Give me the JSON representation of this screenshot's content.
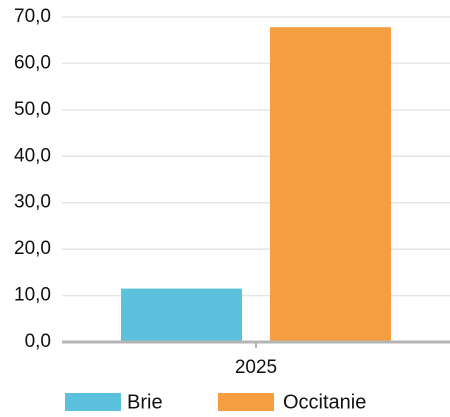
{
  "chart_data": {
    "type": "bar",
    "categories": [
      "2025"
    ],
    "series": [
      {
        "name": "Brie",
        "values": [
          11.5
        ],
        "color": "#5bc1dc"
      },
      {
        "name": "Occitanie",
        "values": [
          67.8
        ],
        "color": "#f49d41"
      }
    ],
    "y_ticks": [
      "0,0",
      "10,0",
      "20,0",
      "30,0",
      "40,0",
      "50,0",
      "60,0",
      "70,0"
    ],
    "ylim": [
      0,
      70
    ],
    "grid": true,
    "legend_position": "bottom",
    "gridline_color": "#e6e6e6",
    "axis_color": "#b5b5b5"
  }
}
